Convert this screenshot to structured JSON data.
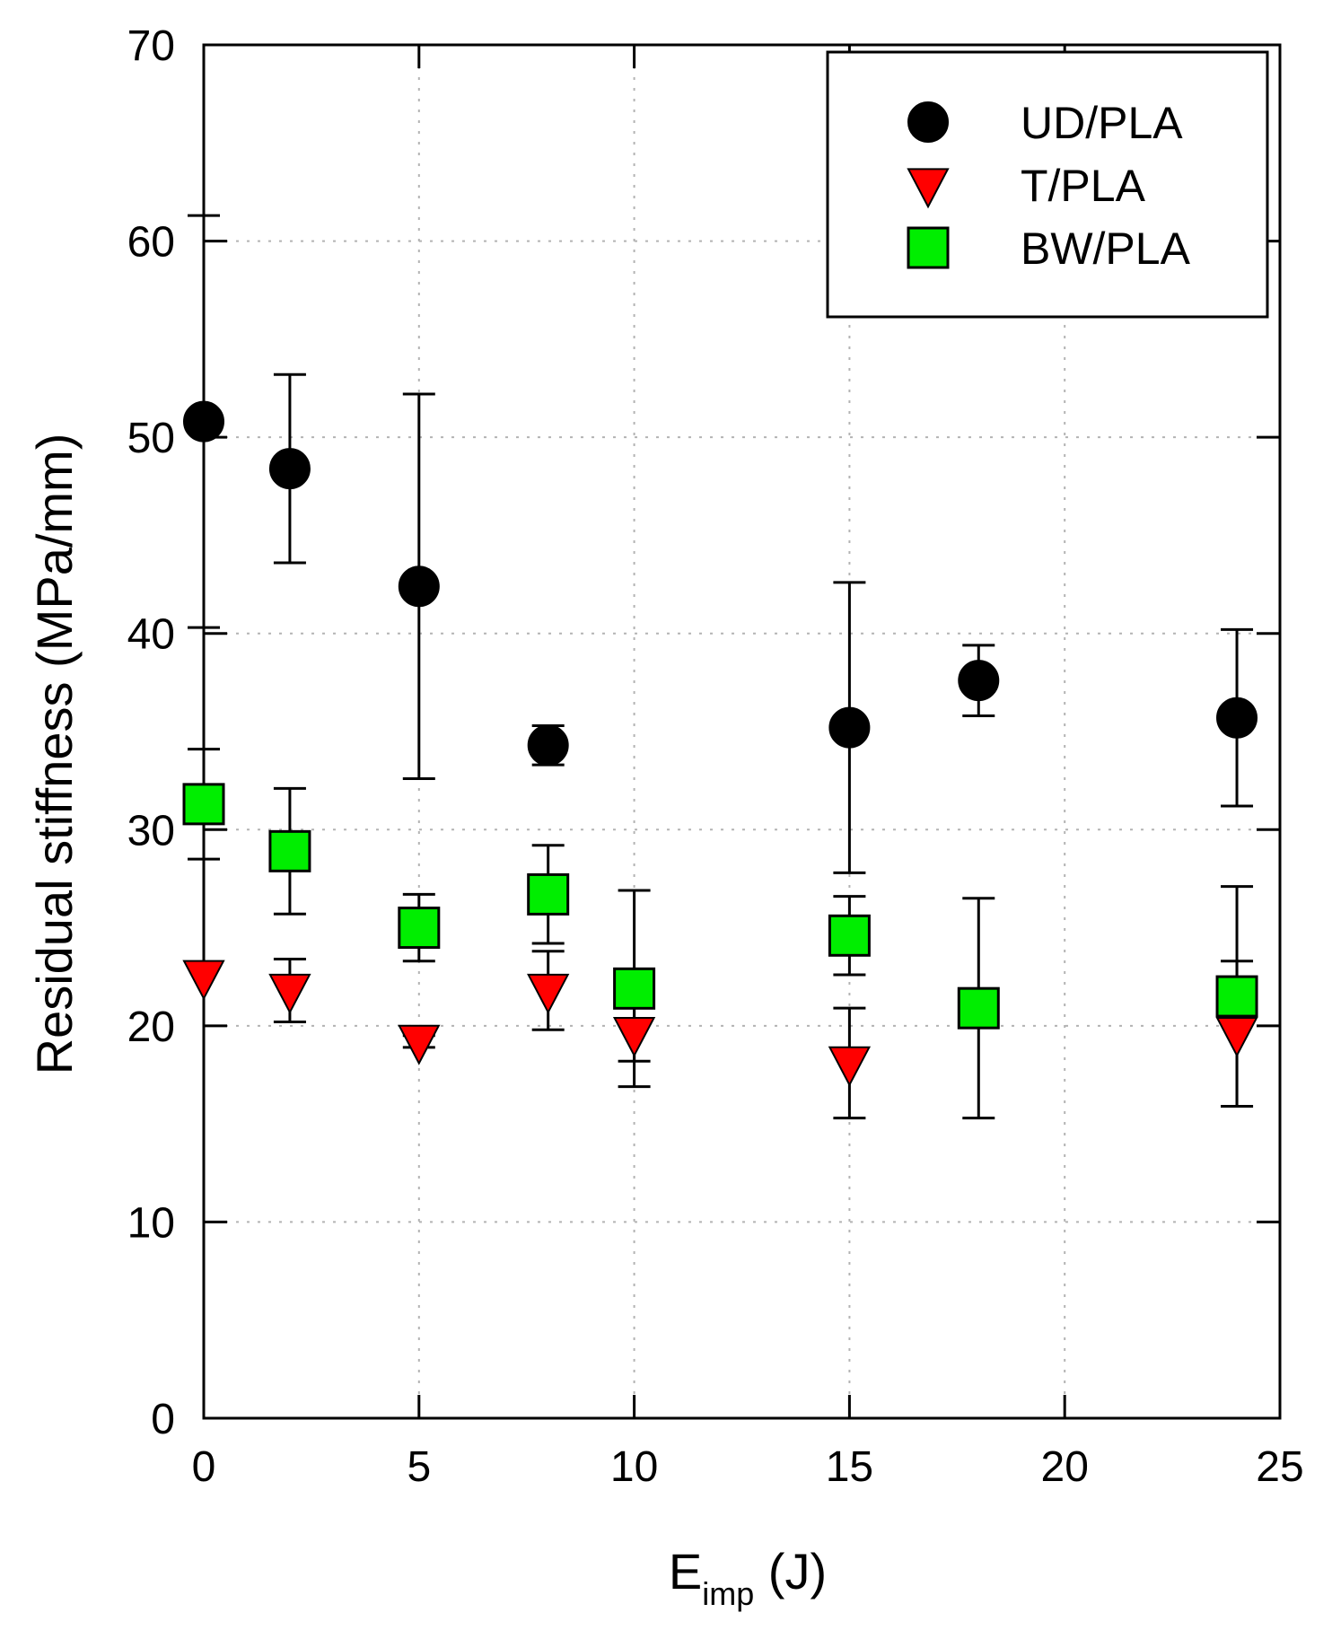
{
  "chart_data": {
    "type": "scatter",
    "title": "",
    "xlabel_main": "E",
    "xlabel_sub": "imp",
    "xlabel_unit": " (J)",
    "ylabel": "Residual stiffness (MPa/mm)",
    "xlim": [
      0,
      25
    ],
    "ylim": [
      0,
      70
    ],
    "xticks": [
      0,
      5,
      10,
      15,
      20,
      25
    ],
    "yticks": [
      0,
      10,
      20,
      30,
      40,
      50,
      60,
      70
    ],
    "grid": true,
    "legend_position": "top-right",
    "series": [
      {
        "name": "UD/PLA",
        "marker": "circle",
        "color": "#000000",
        "points": [
          {
            "x": 0,
            "y": 50.8,
            "err": 10.5
          },
          {
            "x": 2,
            "y": 48.4,
            "err": 4.8
          },
          {
            "x": 5,
            "y": 42.4,
            "err": 9.8
          },
          {
            "x": 8,
            "y": 34.3,
            "err": 1.0
          },
          {
            "x": 15,
            "y": 35.2,
            "err": 7.4
          },
          {
            "x": 18,
            "y": 37.6,
            "err": 1.8
          },
          {
            "x": 24,
            "y": 35.7,
            "err": 4.5
          }
        ]
      },
      {
        "name": "T/PLA",
        "marker": "triangle-down",
        "color": "#ff0000",
        "points": [
          {
            "x": 0,
            "y": 22.5,
            "err": 0
          },
          {
            "x": 2,
            "y": 21.8,
            "err": 1.6
          },
          {
            "x": 5,
            "y": 19.2,
            "err": 0.3
          },
          {
            "x": 8,
            "y": 21.8,
            "err": 2.0
          },
          {
            "x": 10,
            "y": 19.6,
            "err": 1.4
          },
          {
            "x": 15,
            "y": 18.1,
            "err": 2.8
          },
          {
            "x": 24,
            "y": 19.6,
            "err": 3.7
          }
        ]
      },
      {
        "name": "BW/PLA",
        "marker": "square",
        "color": "#00ee00",
        "points": [
          {
            "x": 0,
            "y": 31.3,
            "err": 2.8
          },
          {
            "x": 2,
            "y": 28.9,
            "err": 3.2
          },
          {
            "x": 5,
            "y": 25.0,
            "err": 1.7
          },
          {
            "x": 8,
            "y": 26.7,
            "err": 2.5
          },
          {
            "x": 10,
            "y": 21.9,
            "err": 5.0
          },
          {
            "x": 15,
            "y": 24.6,
            "err": 2.0
          },
          {
            "x": 18,
            "y": 20.9,
            "err": 5.6
          },
          {
            "x": 24,
            "y": 21.5,
            "err": 5.6
          }
        ]
      }
    ]
  }
}
